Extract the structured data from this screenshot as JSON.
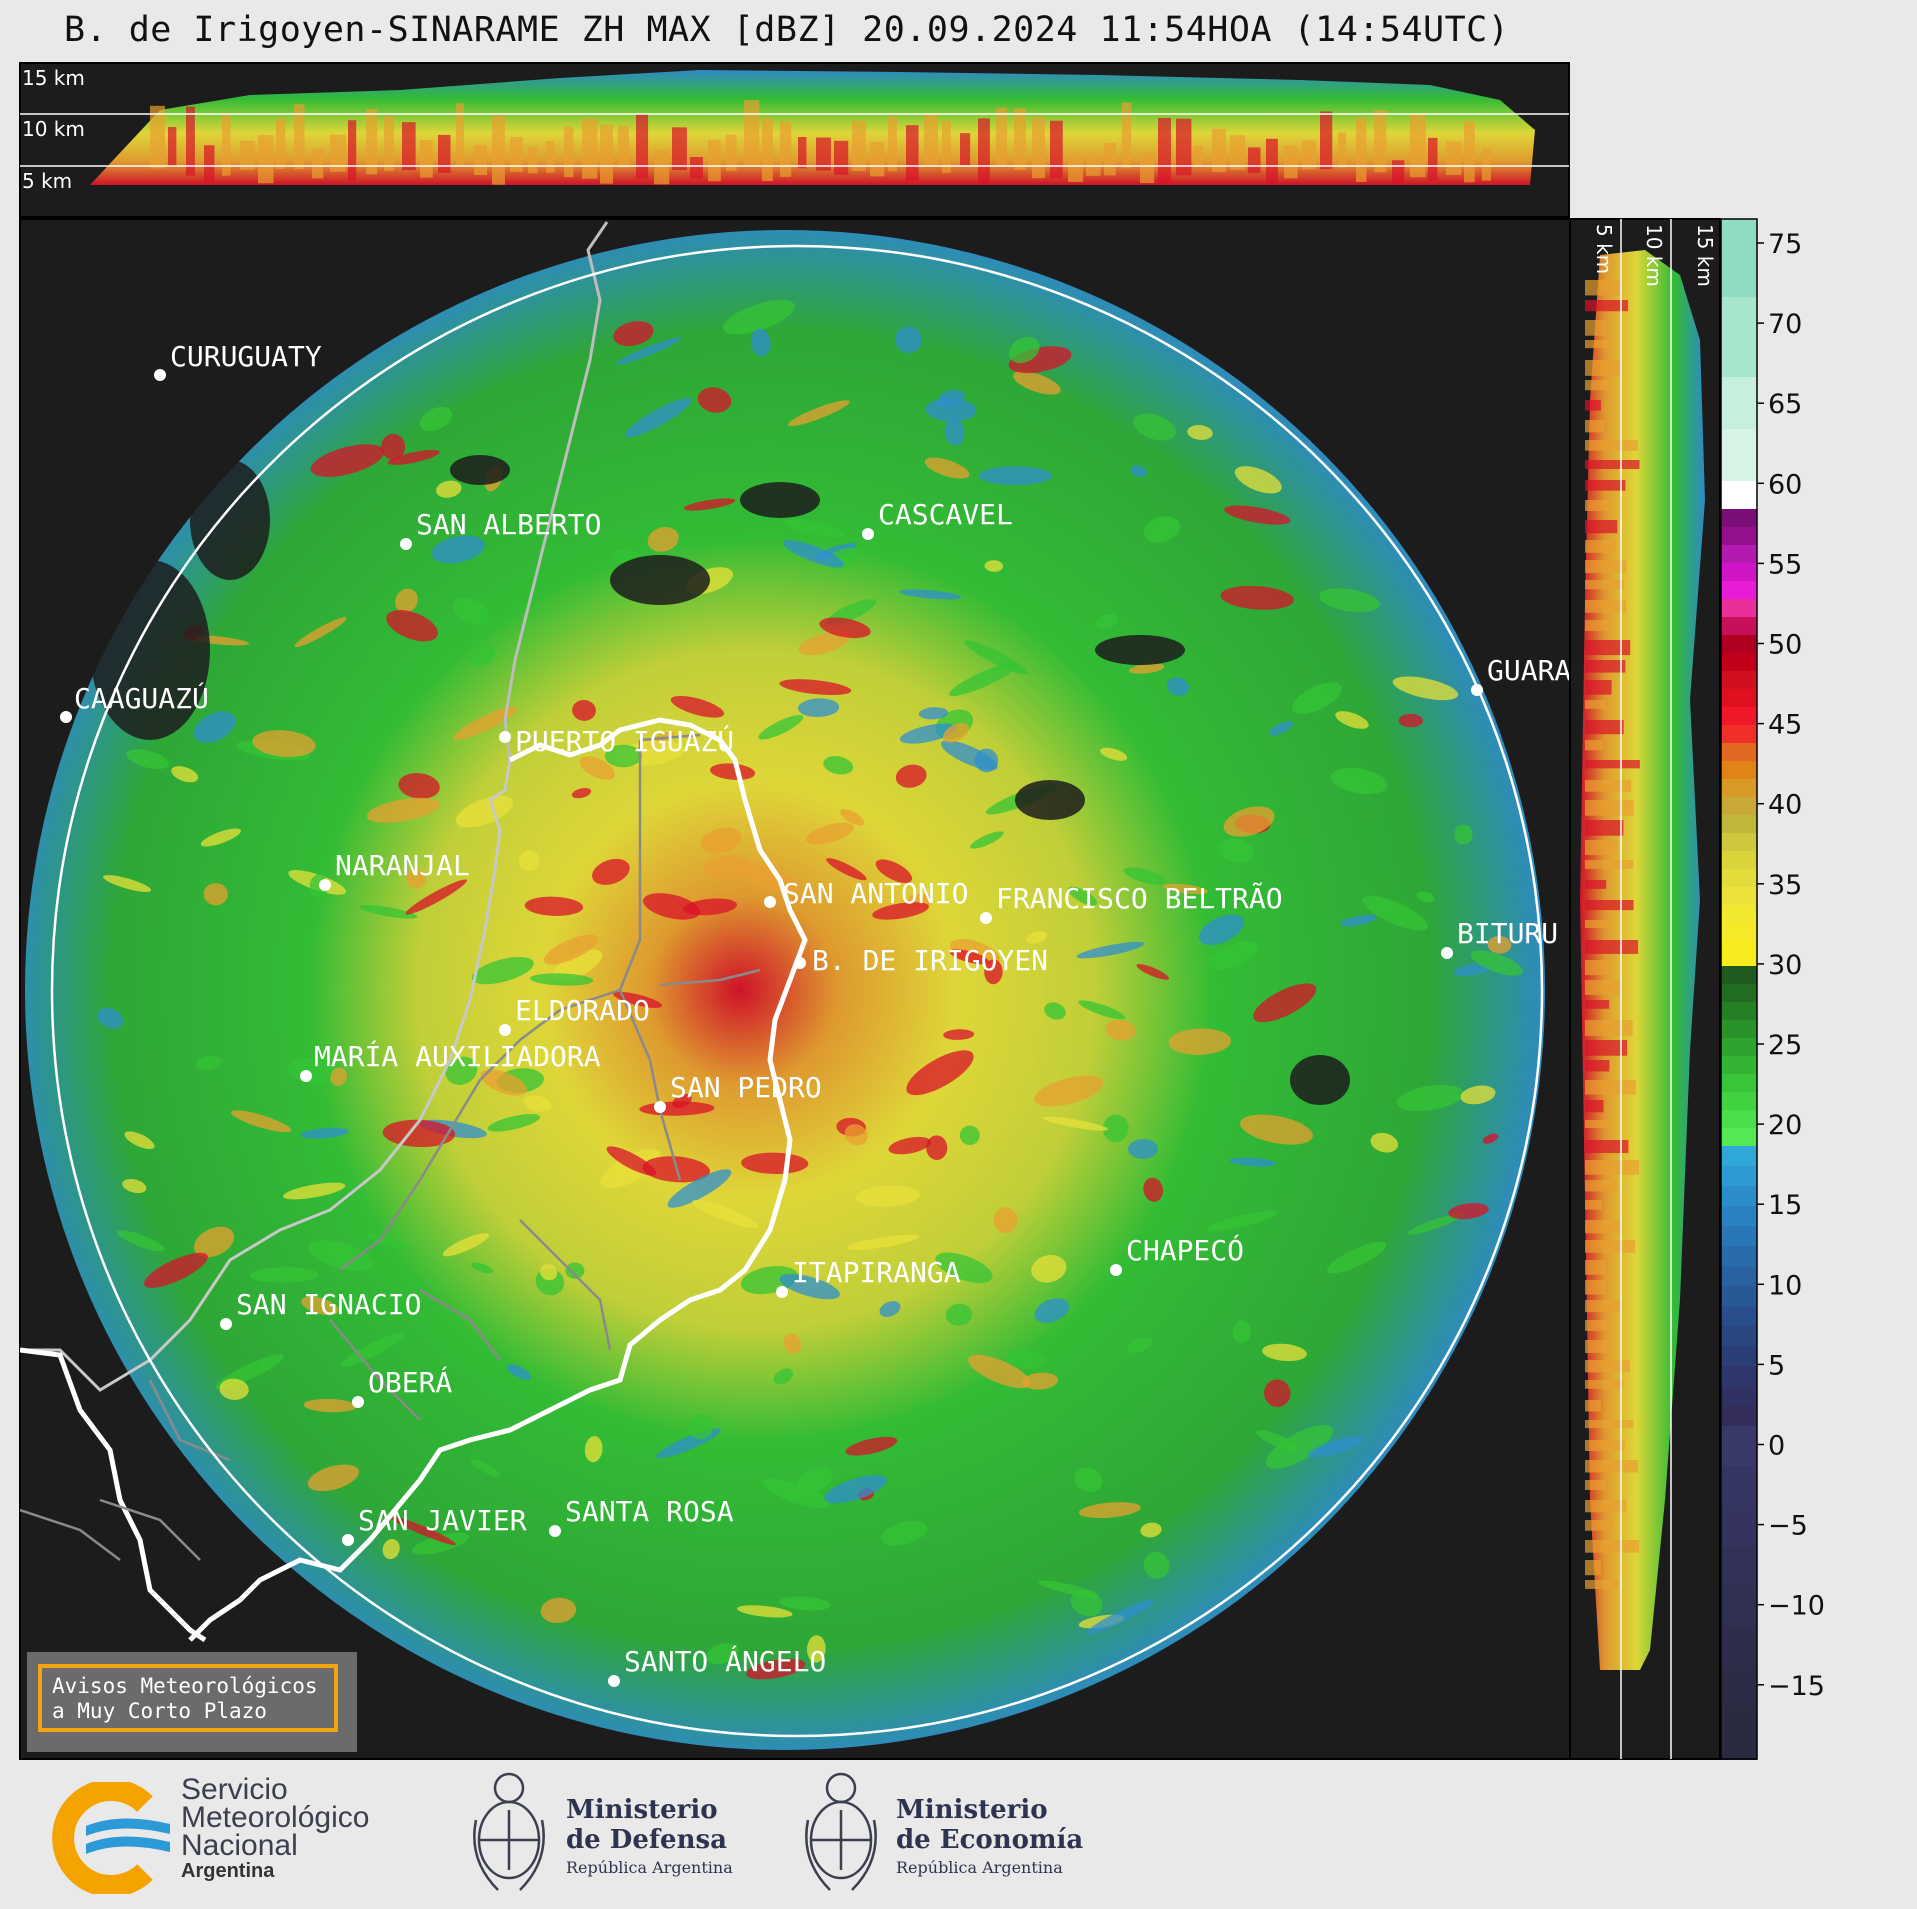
{
  "title": "B. de Irigoyen-SINARAME ZH MAX [dBZ] 20.09.2024 11:54HOA (14:54UTC)",
  "height_labels": {
    "top": [
      "15 km",
      "10 km",
      "5 km"
    ],
    "right": [
      "5 km",
      "10 km",
      "15 km"
    ]
  },
  "colorbar": {
    "ticks": [
      "75",
      "70",
      "65",
      "60",
      "55",
      "50",
      "45",
      "40",
      "35",
      "30",
      "25",
      "20",
      "15",
      "10",
      "5",
      "0",
      "−5",
      "−10",
      "−15"
    ],
    "colors": {
      "clear": "#1c1c1c",
      "weak": "#2f8fcf",
      "moderate": "#34c436",
      "strong": "#e8e03a",
      "heavy": "#e8a030",
      "intense": "#d8122a"
    }
  },
  "cities": [
    {
      "name": "CURUGUATY"
    },
    {
      "name": "SAN ALBERTO"
    },
    {
      "name": "CASCAVEL"
    },
    {
      "name": "CAAGUAZÚ"
    },
    {
      "name": "GUARA"
    },
    {
      "name": "PUERTO IGUAZÚ"
    },
    {
      "name": "NARANJAL"
    },
    {
      "name": "SAN ANTONIO"
    },
    {
      "name": "FRANCISCO BELTRÃO"
    },
    {
      "name": "B. DE IRIGOYEN"
    },
    {
      "name": "BITURU"
    },
    {
      "name": "ELDORADO"
    },
    {
      "name": "MARÍA AUXILIADORA"
    },
    {
      "name": "SAN PEDRO"
    },
    {
      "name": "CHAPECÓ"
    },
    {
      "name": "ITAPIRANGA"
    },
    {
      "name": "SAN IGNACIO"
    },
    {
      "name": "OBERÁ"
    },
    {
      "name": "SAN JAVIER"
    },
    {
      "name": "SANTA ROSA"
    },
    {
      "name": "SANTO ÁNGELO"
    }
  ],
  "avisos": {
    "line1": "Avisos Meteorológicos",
    "line2": "a Muy Corto Plazo"
  },
  "logos": {
    "smn": {
      "line1": "Servicio",
      "line2": "Meteorológico",
      "line3": "Nacional",
      "line4": "Argentina"
    },
    "defensa": {
      "line1": "Ministerio",
      "line2": "de Defensa",
      "line3": "República Argentina"
    },
    "economia": {
      "line1": "Ministerio",
      "line2": "de Economía",
      "line3": "República Argentina"
    }
  }
}
